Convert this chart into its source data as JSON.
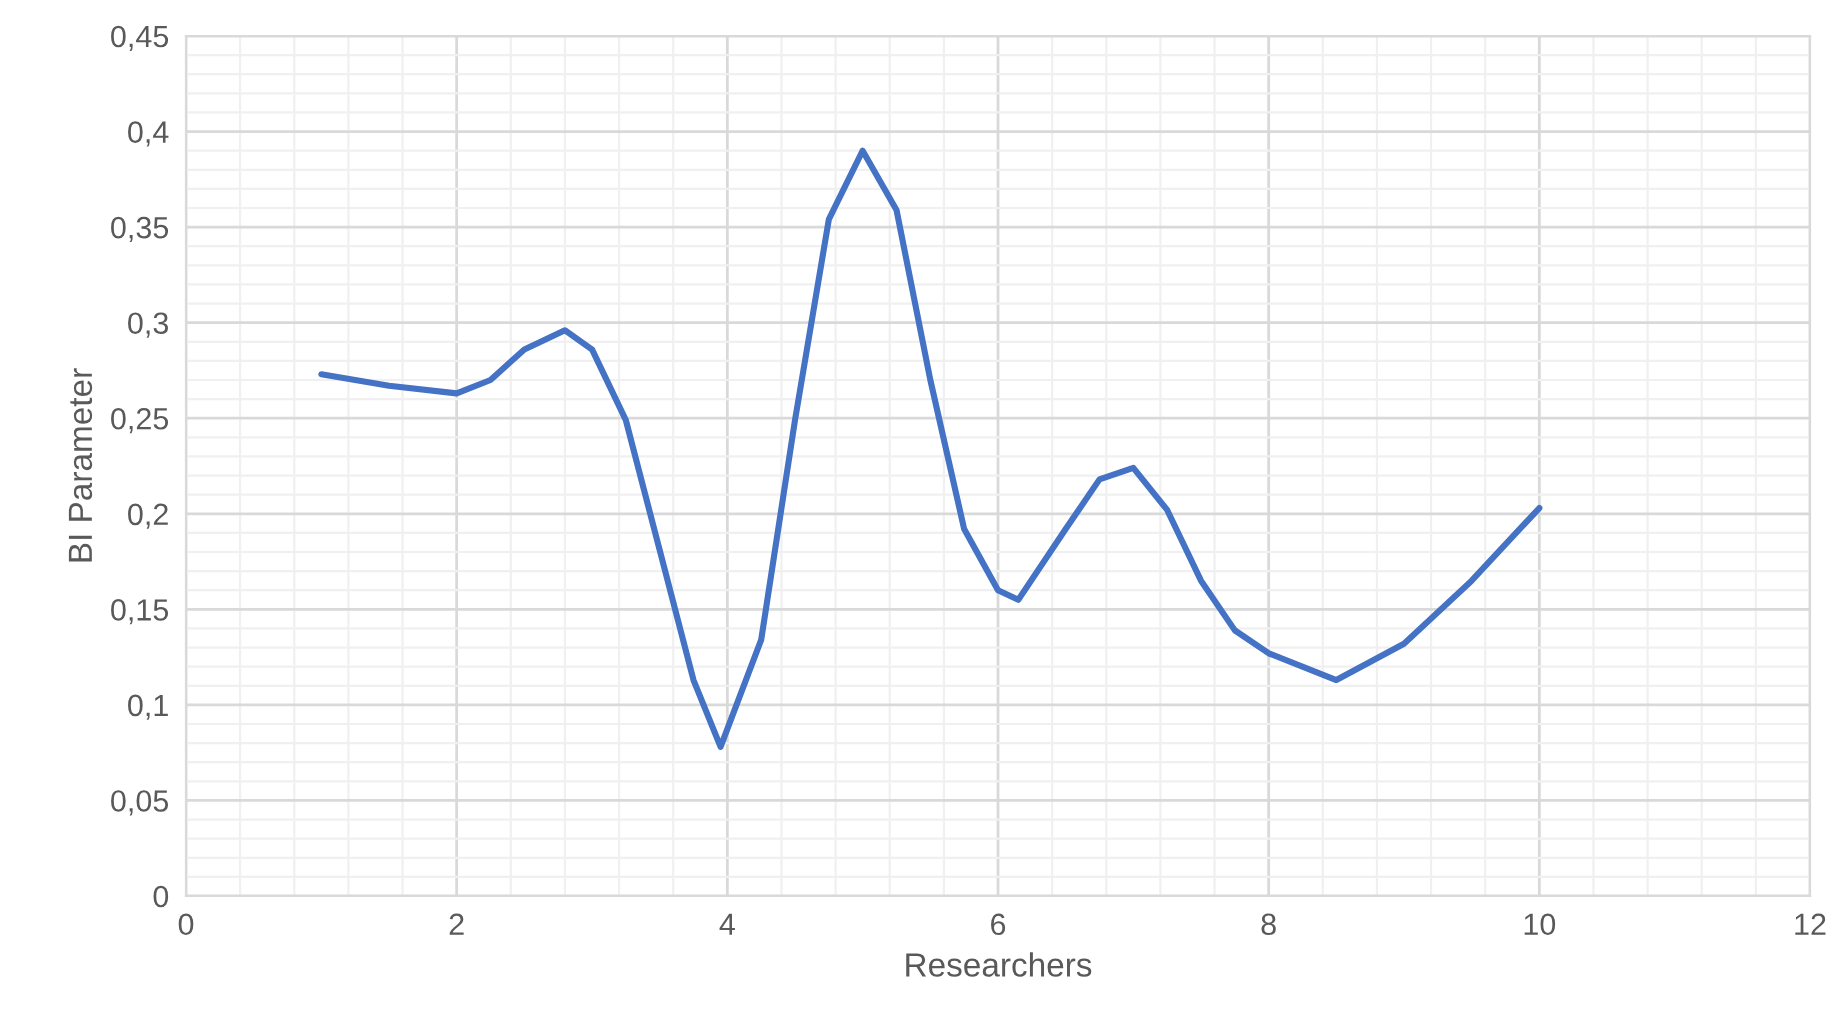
{
  "chart_data": {
    "type": "line",
    "xlabel": "Researchers",
    "ylabel": "BI Parameter",
    "x": [
      1,
      1.5,
      2,
      2.25,
      2.5,
      2.8,
      3,
      3.25,
      3.5,
      3.75,
      3.95,
      4.25,
      4.5,
      4.75,
      5,
      5.25,
      5.5,
      5.75,
      6,
      6.15,
      6.5,
      6.75,
      7,
      7.25,
      7.5,
      7.75,
      8,
      8.5,
      9,
      9.5,
      10
    ],
    "series": [
      {
        "color": "#4472c4",
        "values": [
          0.273,
          0.267,
          0.263,
          0.27,
          0.286,
          0.296,
          0.286,
          0.249,
          0.181,
          0.113,
          0.078,
          0.134,
          0.249,
          0.354,
          0.39,
          0.359,
          0.27,
          0.192,
          0.16,
          0.155,
          0.192,
          0.218,
          0.224,
          0.202,
          0.165,
          0.139,
          0.127,
          0.113,
          0.132,
          0.165,
          0.203
        ]
      }
    ],
    "xlim": [
      0,
      12
    ],
    "xticks": [
      0,
      2,
      4,
      6,
      8,
      10,
      12
    ],
    "ylim": [
      0,
      0.45
    ],
    "yticks": [
      0,
      {
        "value": 0.05,
        "label": "0,05"
      },
      {
        "value": 0.1,
        "label": "0,1"
      },
      {
        "value": 0.15,
        "label": "0,15"
      },
      {
        "value": 0.2,
        "label": "0,2"
      },
      {
        "value": 0.25,
        "label": "0,25"
      },
      {
        "value": 0.3,
        "label": "0,3"
      },
      {
        "value": 0.35,
        "label": "0,35"
      },
      {
        "value": 0.4,
        "label": "0,4"
      },
      {
        "value": 0.45,
        "label": "0,45"
      }
    ],
    "grid": true,
    "marker": "none",
    "line_style": "solid"
  }
}
